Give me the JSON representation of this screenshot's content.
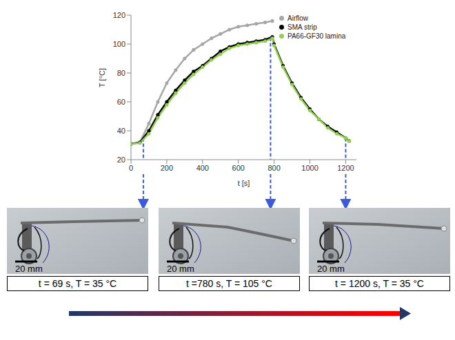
{
  "chart_data": {
    "type": "line",
    "x_label": "t [s]",
    "y_label": "T [°C]",
    "xlim": [
      0,
      1260
    ],
    "xticks": [
      0,
      200,
      400,
      600,
      800,
      1000,
      1200
    ],
    "ylim": [
      20,
      120
    ],
    "yticks": [
      20,
      40,
      60,
      80,
      100,
      120
    ],
    "grid": false,
    "legend": "upper right",
    "x": [
      0,
      50,
      100,
      150,
      200,
      250,
      300,
      350,
      400,
      450,
      500,
      550,
      600,
      650,
      700,
      750,
      790,
      800,
      850,
      900,
      950,
      1000,
      1050,
      1100,
      1150,
      1200,
      1220
    ],
    "series": [
      {
        "name": "Airflow",
        "color": "#a6a6a6",
        "marker": "circle",
        "values": [
          31,
          32,
          45,
          60,
          73,
          82,
          90,
          96,
          100,
          104,
          107,
          110,
          112,
          113,
          114,
          115,
          116,
          null,
          null,
          null,
          null,
          null,
          null,
          null,
          null,
          null,
          null
        ]
      },
      {
        "name": "SMA strip",
        "color": "#000000",
        "marker": "circle",
        "values": [
          31,
          32,
          40,
          51,
          60,
          68,
          75,
          81,
          85,
          90,
          95,
          98,
          100,
          101,
          102,
          103,
          105,
          100,
          85,
          73,
          63,
          55,
          48,
          43,
          39,
          35,
          33
        ]
      },
      {
        "name": "PA66-GF30 lamina",
        "color": "#92d050",
        "marker": "circle",
        "values": [
          31,
          31.5,
          38,
          49,
          58,
          66,
          73,
          79,
          84,
          89,
          93,
          97,
          99,
          100,
          101,
          102,
          104,
          99,
          84,
          72,
          62,
          54,
          48,
          42,
          38,
          35,
          33
        ]
      }
    ]
  },
  "panels": [
    {
      "time": 69,
      "caption": "t = 69 s, T = 35 °C",
      "scale_bar": "20 mm"
    },
    {
      "time": 780,
      "caption": "t =780 s, T = 105 °C",
      "scale_bar": "20 mm"
    },
    {
      "time": 1200,
      "caption": "t = 1200 s, T = 35 °C",
      "scale_bar": "20 mm"
    }
  ]
}
